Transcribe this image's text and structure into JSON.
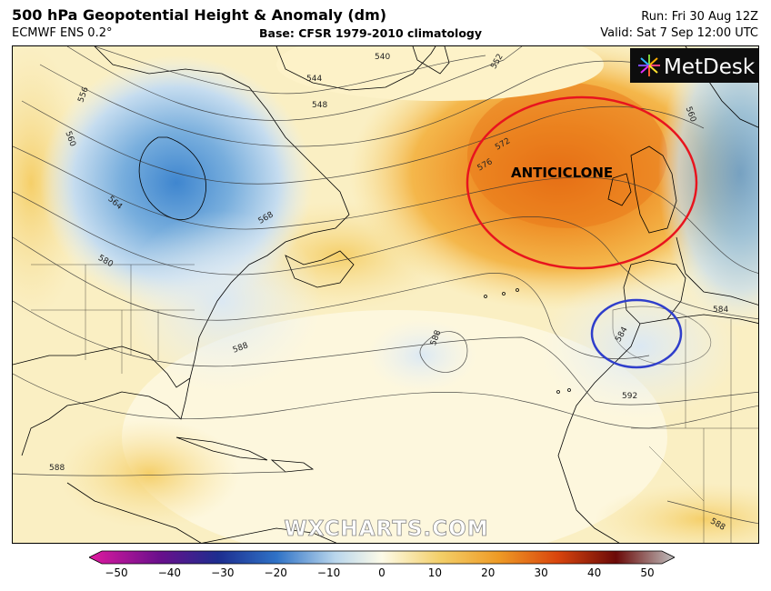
{
  "header": {
    "title": "500 hPa Geopotential Height & Anomaly (dm)",
    "model": "ECMWF ENS 0.2°",
    "base": "Base: CFSR 1979-2010 climatology",
    "run": "Run: Fri 30 Aug 12Z",
    "valid": "Valid: Sat 7 Sep 12:00 UTC"
  },
  "logo": {
    "text": "MetDesk"
  },
  "watermark": "WXCHARTS.COM",
  "annotations": {
    "anticyclone_label": "ANTICICLONE",
    "anticyclone_ring_color": "#e8141e",
    "low_ring_color": "#2f3ecb"
  },
  "contours": [
    "540",
    "544",
    "548",
    "552",
    "556",
    "560",
    "564",
    "568",
    "572",
    "576",
    "580",
    "584",
    "588",
    "592"
  ],
  "colorbar": {
    "ticks": [
      "−50",
      "−40",
      "−30",
      "−20",
      "−10",
      "0",
      "10",
      "20",
      "30",
      "40",
      "50"
    ],
    "range": [
      -50,
      50
    ],
    "colors": [
      "#e0199f",
      "#6a0f8c",
      "#1d2d8f",
      "#2f72c6",
      "#b9d6ec",
      "#fdfbe8",
      "#f3cf68",
      "#ee9a25",
      "#d9450d",
      "#6b0a08",
      "#bfbfbf"
    ]
  },
  "colors": {
    "ocean_neutral": "#fdf6d3",
    "warm_anomaly": "#f08e25",
    "cold_anomaly": "#6ea4d8"
  }
}
